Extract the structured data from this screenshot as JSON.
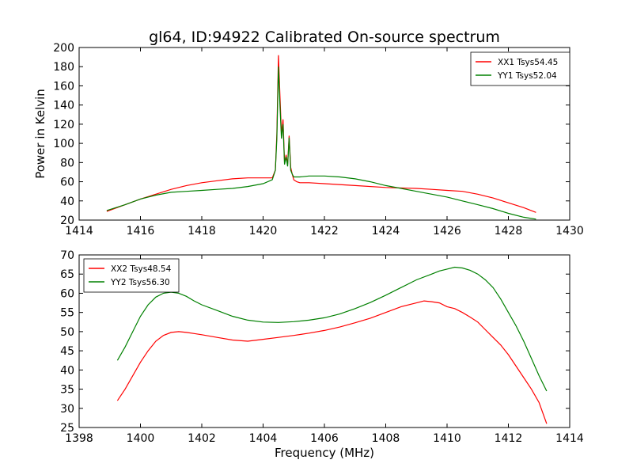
{
  "figure": {
    "title": "gl64, ID:94922 Calibrated On-source spectrum",
    "ylabel_top": "Power in Kelvin",
    "xlabel_bottom": "Frequency (MHz)"
  },
  "chart_data": [
    {
      "type": "line",
      "title": "gl64, ID:94922 Calibrated On-source spectrum",
      "xlabel": "",
      "ylabel": "Power in Kelvin",
      "xlim": [
        1414,
        1430
      ],
      "ylim": [
        20,
        200
      ],
      "xticks": [
        1414,
        1416,
        1418,
        1420,
        1422,
        1424,
        1426,
        1428,
        1430
      ],
      "yticks": [
        20,
        40,
        60,
        80,
        100,
        120,
        140,
        160,
        180,
        200
      ],
      "grid": false,
      "legend": "top-right",
      "series": [
        {
          "name": "XX1 Tsys54.45",
          "color": "#ff0000",
          "x": [
            1414.9,
            1415.5,
            1416.0,
            1416.5,
            1417.0,
            1417.5,
            1418.0,
            1418.5,
            1419.0,
            1419.5,
            1420.0,
            1420.3,
            1420.4,
            1420.45,
            1420.5,
            1420.55,
            1420.6,
            1420.65,
            1420.7,
            1420.75,
            1420.8,
            1420.85,
            1420.9,
            1420.95,
            1421.0,
            1421.1,
            1421.2,
            1421.5,
            1422.0,
            1423.0,
            1424.0,
            1425.0,
            1425.5,
            1426.0,
            1426.5,
            1427.0,
            1427.5,
            1428.0,
            1428.5,
            1428.9
          ],
          "y": [
            29,
            36,
            42,
            47,
            52,
            56,
            59,
            61,
            63,
            64,
            64,
            64,
            72,
            110,
            192,
            150,
            110,
            125,
            80,
            88,
            78,
            108,
            75,
            68,
            62,
            60,
            59,
            59,
            58,
            56,
            54,
            53,
            52,
            51,
            50,
            47,
            43,
            38,
            33,
            28
          ]
        },
        {
          "name": "YY1 Tsys52.04",
          "color": "#008000",
          "x": [
            1414.9,
            1415.5,
            1416.0,
            1416.5,
            1417.0,
            1417.5,
            1418.0,
            1418.5,
            1419.0,
            1419.5,
            1420.0,
            1420.3,
            1420.4,
            1420.45,
            1420.5,
            1420.55,
            1420.6,
            1420.65,
            1420.7,
            1420.75,
            1420.8,
            1420.85,
            1420.9,
            1420.95,
            1421.0,
            1421.1,
            1421.2,
            1421.5,
            1422.0,
            1422.5,
            1423.0,
            1423.5,
            1424.0,
            1424.5,
            1425.0,
            1425.5,
            1426.0,
            1426.5,
            1427.0,
            1427.5,
            1428.0,
            1428.5,
            1428.9
          ],
          "y": [
            30,
            36,
            42,
            46,
            49,
            50,
            51,
            52,
            53,
            55,
            58,
            62,
            72,
            105,
            180,
            140,
            105,
            120,
            78,
            86,
            76,
            106,
            72,
            68,
            65,
            65,
            65,
            66,
            66,
            65,
            63,
            60,
            56,
            53,
            50,
            47,
            44,
            40,
            36,
            32,
            27,
            23,
            21
          ]
        }
      ]
    },
    {
      "type": "line",
      "title": "",
      "xlabel": "Frequency (MHz)",
      "ylabel": "",
      "xlim": [
        1398,
        1414
      ],
      "ylim": [
        25,
        70
      ],
      "xticks": [
        1398,
        1400,
        1402,
        1404,
        1406,
        1408,
        1410,
        1412,
        1414
      ],
      "yticks": [
        25,
        30,
        35,
        40,
        45,
        50,
        55,
        60,
        65,
        70
      ],
      "grid": false,
      "legend": "top-left",
      "series": [
        {
          "name": "XX2 Tsys48.54",
          "color": "#ff0000",
          "x": [
            1399.25,
            1399.5,
            1399.75,
            1400.0,
            1400.25,
            1400.5,
            1400.75,
            1401.0,
            1401.25,
            1401.5,
            1401.75,
            1402.0,
            1402.5,
            1403.0,
            1403.5,
            1404.0,
            1404.5,
            1405.0,
            1405.5,
            1406.0,
            1406.5,
            1407.0,
            1407.5,
            1408.0,
            1408.5,
            1409.0,
            1409.25,
            1409.5,
            1409.75,
            1410.0,
            1410.25,
            1410.5,
            1410.75,
            1411.0,
            1411.25,
            1411.5,
            1411.75,
            1412.0,
            1412.25,
            1412.5,
            1412.75,
            1413.0,
            1413.25
          ],
          "y": [
            32,
            35,
            38.5,
            42,
            45,
            47.5,
            49,
            49.8,
            50,
            49.8,
            49.5,
            49.2,
            48.5,
            47.8,
            47.5,
            48,
            48.5,
            49,
            49.6,
            50.3,
            51.2,
            52.3,
            53.5,
            55,
            56.5,
            57.5,
            58,
            57.8,
            57.5,
            56.5,
            56,
            55,
            53.8,
            52.5,
            50.5,
            48.5,
            46.5,
            44,
            41,
            38,
            35,
            31.5,
            26
          ]
        },
        {
          "name": "YY2 Tsys56.30",
          "color": "#008000",
          "x": [
            1399.25,
            1399.5,
            1399.75,
            1400.0,
            1400.25,
            1400.5,
            1400.75,
            1401.0,
            1401.25,
            1401.5,
            1401.75,
            1402.0,
            1402.5,
            1403.0,
            1403.5,
            1404.0,
            1404.5,
            1405.0,
            1405.5,
            1406.0,
            1406.5,
            1407.0,
            1407.5,
            1408.0,
            1408.5,
            1409.0,
            1409.5,
            1409.75,
            1410.0,
            1410.25,
            1410.5,
            1410.75,
            1411.0,
            1411.25,
            1411.5,
            1411.75,
            1412.0,
            1412.25,
            1412.5,
            1412.75,
            1413.0,
            1413.25
          ],
          "y": [
            42.5,
            46,
            50,
            54,
            57,
            59,
            60,
            60.3,
            60,
            59.2,
            58,
            57,
            55.5,
            54,
            53,
            52.5,
            52.4,
            52.6,
            53,
            53.6,
            54.6,
            56,
            57.6,
            59.5,
            61.5,
            63.5,
            65,
            65.8,
            66.3,
            66.8,
            66.6,
            66,
            65,
            63.5,
            61.5,
            58.5,
            55,
            51.5,
            47.5,
            43,
            38.5,
            34.5
          ]
        }
      ]
    }
  ]
}
